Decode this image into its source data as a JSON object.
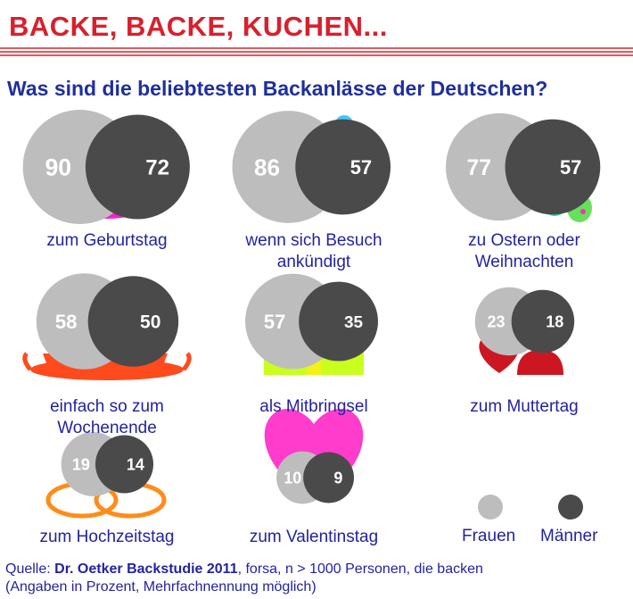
{
  "header": {
    "title": "BACKE, BACKE, KUCHEN...",
    "subtitle": "Was sind die beliebtesten Backanlässe der Deutschen?"
  },
  "colors": {
    "frauen": "#bdbdbd",
    "maenner": "#4a4a4a",
    "title_red": "#d8202c",
    "text_blue": "#2323a0"
  },
  "chart_data": {
    "type": "bubble",
    "unit": "Prozent",
    "series": [
      {
        "name": "Frauen"
      },
      {
        "name": "Männer"
      }
    ],
    "categories": [
      {
        "label": "zum Geburtstag",
        "frauen": 90,
        "maenner": 72,
        "icon": "birthday-cake-icon"
      },
      {
        "label": "wenn sich Besuch ankündigt",
        "frauen": 86,
        "maenner": 57,
        "icon": "couple-icon"
      },
      {
        "label": "zu Ostern oder Weihnachten",
        "frauen": 77,
        "maenner": 57,
        "icon": "christmas-tree-easter-eggs-icon"
      },
      {
        "label": "einfach so zum Wochenende",
        "frauen": 58,
        "maenner": 50,
        "icon": "tea-set-icon"
      },
      {
        "label": "als Mitbringsel",
        "frauen": 57,
        "maenner": 35,
        "icon": "gift-icon"
      },
      {
        "label": "zum Muttertag",
        "frauen": 23,
        "maenner": 18,
        "icon": "mother-heart-icon"
      },
      {
        "label": "zum Hochzeitstag",
        "frauen": 19,
        "maenner": 14,
        "icon": "wedding-rings-icon"
      },
      {
        "label": "zum Valentinstag",
        "frauen": 10,
        "maenner": 9,
        "icon": "heart-icon"
      }
    ]
  },
  "legend": {
    "frauen": "Frauen",
    "maenner": "Männer"
  },
  "source": {
    "prefix": "Quelle: ",
    "study": "Dr. Oetker Backstudie 2011",
    "rest": ", forsa, n > 1000 Personen, die backen",
    "note": "(Angaben in Prozent, Mehrfachnennung möglich)"
  }
}
